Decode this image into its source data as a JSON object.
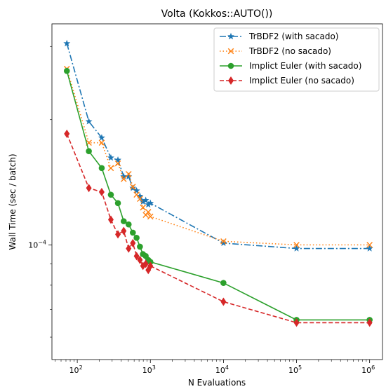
{
  "chart_data": {
    "type": "line",
    "title": "Volta (Kokkos::AUTO())",
    "xlabel": "N Evaluations",
    "ylabel": "Wall Time (sec / batch)",
    "xscale": "log",
    "yscale": "log",
    "xlim": [
      45,
      1500000
    ],
    "ylim": [
      5.3e-05,
      0.00034
    ],
    "grid": false,
    "legend_position": "top-right",
    "x_ticks": [
      {
        "value": 100,
        "base": "10",
        "exp": "2"
      },
      {
        "value": 1000,
        "base": "10",
        "exp": "3"
      },
      {
        "value": 10000,
        "base": "10",
        "exp": "4"
      },
      {
        "value": 100000,
        "base": "10",
        "exp": "5"
      },
      {
        "value": 1000000,
        "base": "10",
        "exp": "6"
      }
    ],
    "y_ticks": [
      {
        "value": 0.0001,
        "base": "10",
        "exp": "−4"
      }
    ],
    "series": [
      {
        "name": "TrBDF2 (with sacado)",
        "color": "#1f77b4",
        "dash": "9,3,2,3",
        "marker": "star",
        "x": [
          72,
          144,
          216,
          288,
          360,
          432,
          504,
          576,
          648,
          720,
          792,
          864,
          936,
          1000,
          10000,
          100000,
          1000000
        ],
        "y": [
          0.000305,
          0.000198,
          0.000181,
          0.000162,
          0.00016,
          0.000146,
          0.000146,
          0.000137,
          0.000135,
          0.000131,
          0.000127,
          0.000128,
          0.000125,
          0.000126,
          0.000101,
          9.8e-05,
          9.8e-05
        ]
      },
      {
        "name": "TrBDF2 (no sacado)",
        "color": "#ff7f0e",
        "dash": "1.5,3",
        "marker": "x",
        "x": [
          72,
          144,
          216,
          288,
          360,
          432,
          504,
          576,
          648,
          720,
          792,
          864,
          936,
          1000,
          10000,
          100000,
          1000000
        ],
        "y": [
          0.000265,
          0.000176,
          0.000176,
          0.000153,
          0.000157,
          0.000144,
          0.000148,
          0.000138,
          0.000132,
          0.000129,
          0.000123,
          0.000118,
          0.00012,
          0.000117,
          0.000102,
          0.0001,
          0.0001
        ]
      },
      {
        "name": "Implict Euler (with sacado)",
        "color": "#2ca02c",
        "dash": "",
        "marker": "circle",
        "x": [
          72,
          144,
          216,
          288,
          360,
          432,
          504,
          576,
          648,
          720,
          792,
          864,
          936,
          1000,
          10000,
          100000,
          1000000
        ],
        "y": [
          0.000262,
          0.000168,
          0.000153,
          0.000132,
          0.000126,
          0.000114,
          0.000112,
          0.000107,
          0.000104,
          9.9e-05,
          9.5e-05,
          9.4e-05,
          9.2e-05,
          9.1e-05,
          8.1e-05,
          6.6e-05,
          6.6e-05
        ]
      },
      {
        "name": "Implict Euler (no sacado)",
        "color": "#d62728",
        "dash": "6,3",
        "marker": "diamond",
        "x": [
          72,
          144,
          216,
          288,
          360,
          432,
          504,
          576,
          648,
          720,
          792,
          864,
          936,
          1000,
          10000,
          100000,
          1000000
        ],
        "y": [
          0.000185,
          0.000137,
          0.000134,
          0.000115,
          0.000106,
          0.000108,
          9.8e-05,
          0.000101,
          9.4e-05,
          9.2e-05,
          8.9e-05,
          9e-05,
          8.7e-05,
          8.9e-05,
          7.3e-05,
          6.5e-05,
          6.5e-05
        ]
      }
    ]
  }
}
